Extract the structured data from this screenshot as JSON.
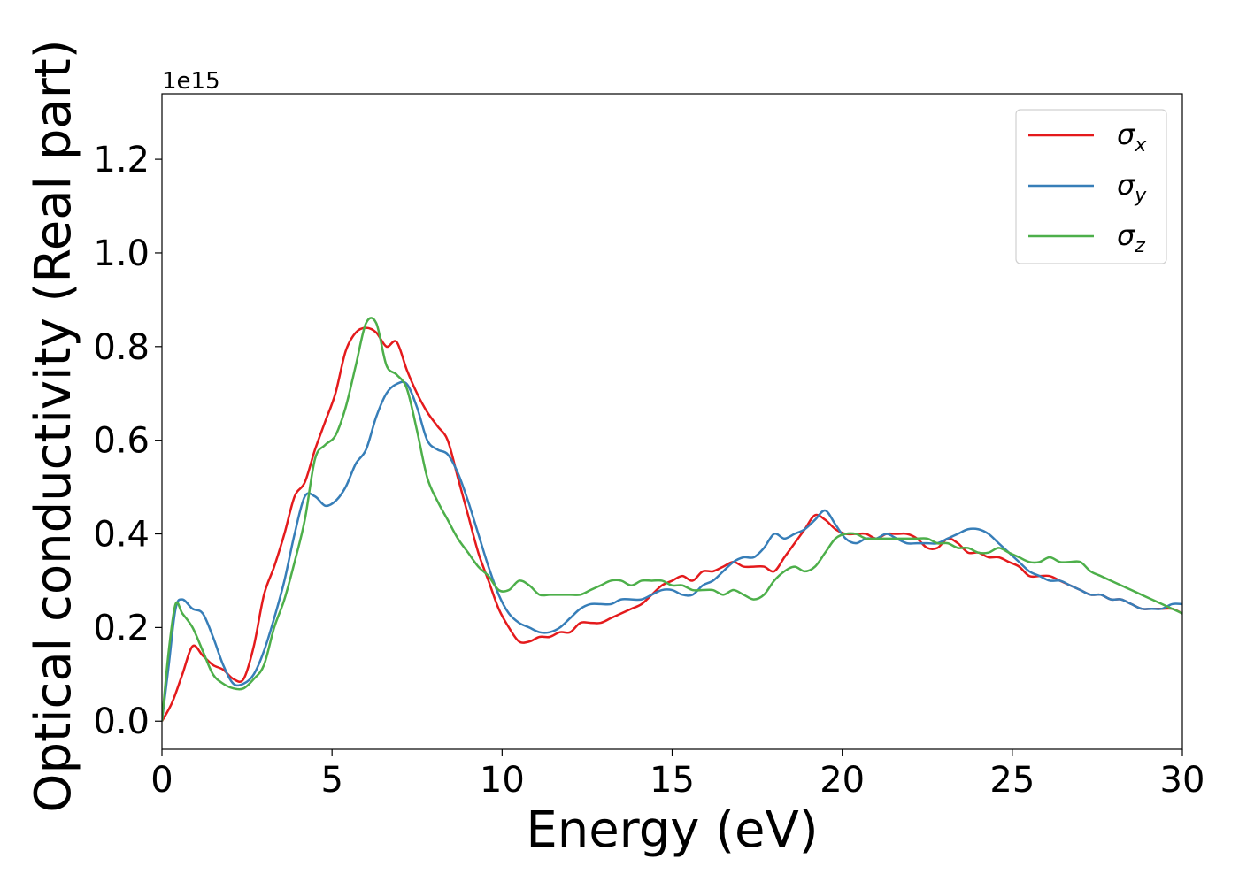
{
  "chart_data": {
    "type": "line",
    "xlabel": "Energy (eV)",
    "ylabel": "Optical conductivity (Real part)",
    "y_offset_label": "1e15",
    "xlim": [
      0,
      30
    ],
    "ylim": [
      -0.06,
      1.34
    ],
    "x_ticks": [
      0,
      5,
      10,
      15,
      20,
      25,
      30
    ],
    "y_ticks": [
      0.0,
      0.2,
      0.4,
      0.6,
      0.8,
      1.0,
      1.2
    ],
    "x_tick_labels": [
      "0",
      "5",
      "10",
      "15",
      "20",
      "25",
      "30"
    ],
    "y_tick_labels": [
      "0.0",
      "0.2",
      "0.4",
      "0.6",
      "0.8",
      "1.0",
      "1.2"
    ],
    "grid": false,
    "legend_position": "top-right",
    "series": [
      {
        "name": "σx",
        "symbol": "σ",
        "subscript": "x",
        "color": "#e41a1c",
        "points": [
          [
            0,
            0.0
          ],
          [
            0.3,
            0.04
          ],
          [
            0.6,
            0.1
          ],
          [
            0.9,
            0.16
          ],
          [
            1.2,
            0.14
          ],
          [
            1.5,
            0.12
          ],
          [
            1.8,
            0.11
          ],
          [
            2.1,
            0.09
          ],
          [
            2.4,
            0.09
          ],
          [
            2.7,
            0.16
          ],
          [
            3.0,
            0.27
          ],
          [
            3.3,
            0.33
          ],
          [
            3.6,
            0.4
          ],
          [
            3.9,
            0.48
          ],
          [
            4.2,
            0.51
          ],
          [
            4.5,
            0.58
          ],
          [
            4.8,
            0.64
          ],
          [
            5.1,
            0.7
          ],
          [
            5.4,
            0.79
          ],
          [
            5.7,
            0.83
          ],
          [
            6.0,
            0.84
          ],
          [
            6.3,
            0.83
          ],
          [
            6.6,
            0.8
          ],
          [
            6.9,
            0.81
          ],
          [
            7.2,
            0.75
          ],
          [
            7.5,
            0.7
          ],
          [
            7.8,
            0.66
          ],
          [
            8.1,
            0.63
          ],
          [
            8.4,
            0.6
          ],
          [
            8.7,
            0.52
          ],
          [
            9.0,
            0.44
          ],
          [
            9.3,
            0.36
          ],
          [
            9.6,
            0.3
          ],
          [
            9.9,
            0.24
          ],
          [
            10.2,
            0.2
          ],
          [
            10.5,
            0.17
          ],
          [
            10.8,
            0.17
          ],
          [
            11.1,
            0.18
          ],
          [
            11.4,
            0.18
          ],
          [
            11.7,
            0.19
          ],
          [
            12.0,
            0.19
          ],
          [
            12.3,
            0.21
          ],
          [
            12.6,
            0.21
          ],
          [
            12.9,
            0.21
          ],
          [
            13.2,
            0.22
          ],
          [
            13.5,
            0.23
          ],
          [
            13.8,
            0.24
          ],
          [
            14.1,
            0.25
          ],
          [
            14.4,
            0.27
          ],
          [
            14.7,
            0.29
          ],
          [
            15.0,
            0.3
          ],
          [
            15.3,
            0.31
          ],
          [
            15.6,
            0.3
          ],
          [
            15.9,
            0.32
          ],
          [
            16.2,
            0.32
          ],
          [
            16.5,
            0.33
          ],
          [
            16.8,
            0.34
          ],
          [
            17.1,
            0.33
          ],
          [
            17.4,
            0.33
          ],
          [
            17.7,
            0.33
          ],
          [
            18.0,
            0.32
          ],
          [
            18.3,
            0.35
          ],
          [
            18.6,
            0.38
          ],
          [
            18.9,
            0.41
          ],
          [
            19.2,
            0.44
          ],
          [
            19.5,
            0.43
          ],
          [
            19.8,
            0.41
          ],
          [
            20.1,
            0.4
          ],
          [
            20.4,
            0.4
          ],
          [
            20.7,
            0.4
          ],
          [
            21.0,
            0.39
          ],
          [
            21.3,
            0.4
          ],
          [
            21.6,
            0.4
          ],
          [
            21.9,
            0.4
          ],
          [
            22.2,
            0.39
          ],
          [
            22.5,
            0.37
          ],
          [
            22.8,
            0.37
          ],
          [
            23.1,
            0.39
          ],
          [
            23.4,
            0.38
          ],
          [
            23.7,
            0.36
          ],
          [
            24.0,
            0.36
          ],
          [
            24.3,
            0.35
          ],
          [
            24.6,
            0.35
          ],
          [
            24.9,
            0.34
          ],
          [
            25.2,
            0.33
          ],
          [
            25.5,
            0.31
          ],
          [
            25.8,
            0.31
          ],
          [
            26.1,
            0.31
          ],
          [
            26.4,
            0.3
          ],
          [
            26.7,
            0.29
          ],
          [
            27.0,
            0.28
          ],
          [
            27.3,
            0.27
          ],
          [
            27.6,
            0.27
          ],
          [
            27.9,
            0.26
          ],
          [
            28.2,
            0.26
          ],
          [
            28.5,
            0.25
          ],
          [
            28.8,
            0.24
          ],
          [
            29.1,
            0.24
          ],
          [
            29.4,
            0.24
          ],
          [
            29.7,
            0.24
          ],
          [
            30.0,
            0.23
          ]
        ]
      },
      {
        "name": "σy",
        "symbol": "σ",
        "subscript": "y",
        "color": "#377eb8",
        "points": [
          [
            0,
            0.0
          ],
          [
            0.2,
            0.12
          ],
          [
            0.4,
            0.24
          ],
          [
            0.6,
            0.26
          ],
          [
            0.9,
            0.24
          ],
          [
            1.2,
            0.23
          ],
          [
            1.5,
            0.18
          ],
          [
            1.8,
            0.12
          ],
          [
            2.1,
            0.08
          ],
          [
            2.4,
            0.08
          ],
          [
            2.7,
            0.1
          ],
          [
            3.0,
            0.15
          ],
          [
            3.3,
            0.22
          ],
          [
            3.6,
            0.3
          ],
          [
            3.9,
            0.4
          ],
          [
            4.2,
            0.48
          ],
          [
            4.5,
            0.48
          ],
          [
            4.8,
            0.46
          ],
          [
            5.1,
            0.47
          ],
          [
            5.4,
            0.5
          ],
          [
            5.7,
            0.55
          ],
          [
            6.0,
            0.58
          ],
          [
            6.3,
            0.65
          ],
          [
            6.6,
            0.7
          ],
          [
            6.9,
            0.72
          ],
          [
            7.2,
            0.72
          ],
          [
            7.5,
            0.67
          ],
          [
            7.8,
            0.6
          ],
          [
            8.1,
            0.58
          ],
          [
            8.4,
            0.57
          ],
          [
            8.7,
            0.53
          ],
          [
            9.0,
            0.47
          ],
          [
            9.3,
            0.4
          ],
          [
            9.6,
            0.33
          ],
          [
            9.9,
            0.27
          ],
          [
            10.2,
            0.23
          ],
          [
            10.5,
            0.21
          ],
          [
            10.8,
            0.2
          ],
          [
            11.1,
            0.19
          ],
          [
            11.4,
            0.19
          ],
          [
            11.7,
            0.2
          ],
          [
            12.0,
            0.22
          ],
          [
            12.3,
            0.24
          ],
          [
            12.6,
            0.25
          ],
          [
            12.9,
            0.25
          ],
          [
            13.2,
            0.25
          ],
          [
            13.5,
            0.26
          ],
          [
            13.8,
            0.26
          ],
          [
            14.1,
            0.26
          ],
          [
            14.4,
            0.27
          ],
          [
            14.7,
            0.28
          ],
          [
            15.0,
            0.28
          ],
          [
            15.3,
            0.27
          ],
          [
            15.6,
            0.27
          ],
          [
            15.9,
            0.29
          ],
          [
            16.2,
            0.3
          ],
          [
            16.5,
            0.32
          ],
          [
            16.8,
            0.34
          ],
          [
            17.1,
            0.35
          ],
          [
            17.4,
            0.35
          ],
          [
            17.7,
            0.37
          ],
          [
            18.0,
            0.4
          ],
          [
            18.3,
            0.39
          ],
          [
            18.6,
            0.4
          ],
          [
            18.9,
            0.41
          ],
          [
            19.2,
            0.43
          ],
          [
            19.5,
            0.45
          ],
          [
            19.8,
            0.42
          ],
          [
            20.1,
            0.39
          ],
          [
            20.4,
            0.38
          ],
          [
            20.7,
            0.39
          ],
          [
            21.0,
            0.39
          ],
          [
            21.3,
            0.4
          ],
          [
            21.6,
            0.39
          ],
          [
            21.9,
            0.38
          ],
          [
            22.2,
            0.38
          ],
          [
            22.5,
            0.38
          ],
          [
            22.8,
            0.38
          ],
          [
            23.1,
            0.39
          ],
          [
            23.4,
            0.4
          ],
          [
            23.7,
            0.41
          ],
          [
            24.0,
            0.41
          ],
          [
            24.3,
            0.4
          ],
          [
            24.6,
            0.38
          ],
          [
            24.9,
            0.36
          ],
          [
            25.2,
            0.34
          ],
          [
            25.5,
            0.32
          ],
          [
            25.8,
            0.31
          ],
          [
            26.1,
            0.3
          ],
          [
            26.4,
            0.3
          ],
          [
            26.7,
            0.29
          ],
          [
            27.0,
            0.28
          ],
          [
            27.3,
            0.27
          ],
          [
            27.6,
            0.27
          ],
          [
            27.9,
            0.26
          ],
          [
            28.2,
            0.26
          ],
          [
            28.5,
            0.25
          ],
          [
            28.8,
            0.24
          ],
          [
            29.1,
            0.24
          ],
          [
            29.4,
            0.24
          ],
          [
            29.7,
            0.25
          ],
          [
            30.0,
            0.25
          ]
        ]
      },
      {
        "name": "σz",
        "symbol": "σ",
        "subscript": "z",
        "color": "#4daf4a",
        "points": [
          [
            0,
            0.0
          ],
          [
            0.2,
            0.15
          ],
          [
            0.4,
            0.25
          ],
          [
            0.6,
            0.23
          ],
          [
            0.9,
            0.2
          ],
          [
            1.2,
            0.15
          ],
          [
            1.5,
            0.1
          ],
          [
            1.8,
            0.08
          ],
          [
            2.1,
            0.07
          ],
          [
            2.4,
            0.07
          ],
          [
            2.7,
            0.09
          ],
          [
            3.0,
            0.12
          ],
          [
            3.3,
            0.2
          ],
          [
            3.6,
            0.26
          ],
          [
            3.9,
            0.34
          ],
          [
            4.2,
            0.43
          ],
          [
            4.5,
            0.56
          ],
          [
            4.8,
            0.59
          ],
          [
            5.1,
            0.61
          ],
          [
            5.4,
            0.67
          ],
          [
            5.7,
            0.76
          ],
          [
            6.0,
            0.85
          ],
          [
            6.3,
            0.85
          ],
          [
            6.6,
            0.76
          ],
          [
            6.9,
            0.74
          ],
          [
            7.2,
            0.71
          ],
          [
            7.5,
            0.62
          ],
          [
            7.8,
            0.52
          ],
          [
            8.1,
            0.47
          ],
          [
            8.4,
            0.43
          ],
          [
            8.7,
            0.39
          ],
          [
            9.0,
            0.36
          ],
          [
            9.3,
            0.33
          ],
          [
            9.6,
            0.31
          ],
          [
            9.9,
            0.28
          ],
          [
            10.2,
            0.28
          ],
          [
            10.5,
            0.3
          ],
          [
            10.8,
            0.29
          ],
          [
            11.1,
            0.27
          ],
          [
            11.4,
            0.27
          ],
          [
            11.7,
            0.27
          ],
          [
            12.0,
            0.27
          ],
          [
            12.3,
            0.27
          ],
          [
            12.6,
            0.28
          ],
          [
            12.9,
            0.29
          ],
          [
            13.2,
            0.3
          ],
          [
            13.5,
            0.3
          ],
          [
            13.8,
            0.29
          ],
          [
            14.1,
            0.3
          ],
          [
            14.4,
            0.3
          ],
          [
            14.7,
            0.3
          ],
          [
            15.0,
            0.29
          ],
          [
            15.3,
            0.29
          ],
          [
            15.6,
            0.28
          ],
          [
            15.9,
            0.28
          ],
          [
            16.2,
            0.28
          ],
          [
            16.5,
            0.27
          ],
          [
            16.8,
            0.28
          ],
          [
            17.1,
            0.27
          ],
          [
            17.4,
            0.26
          ],
          [
            17.7,
            0.27
          ],
          [
            18.0,
            0.3
          ],
          [
            18.3,
            0.32
          ],
          [
            18.6,
            0.33
          ],
          [
            18.9,
            0.32
          ],
          [
            19.2,
            0.33
          ],
          [
            19.5,
            0.36
          ],
          [
            19.8,
            0.39
          ],
          [
            20.1,
            0.4
          ],
          [
            20.4,
            0.4
          ],
          [
            20.7,
            0.39
          ],
          [
            21.0,
            0.39
          ],
          [
            21.3,
            0.39
          ],
          [
            21.6,
            0.39
          ],
          [
            21.9,
            0.39
          ],
          [
            22.2,
            0.39
          ],
          [
            22.5,
            0.39
          ],
          [
            22.8,
            0.38
          ],
          [
            23.1,
            0.38
          ],
          [
            23.4,
            0.37
          ],
          [
            23.7,
            0.37
          ],
          [
            24.0,
            0.36
          ],
          [
            24.3,
            0.36
          ],
          [
            24.6,
            0.37
          ],
          [
            24.9,
            0.36
          ],
          [
            25.2,
            0.35
          ],
          [
            25.5,
            0.34
          ],
          [
            25.8,
            0.34
          ],
          [
            26.1,
            0.35
          ],
          [
            26.4,
            0.34
          ],
          [
            26.7,
            0.34
          ],
          [
            27.0,
            0.34
          ],
          [
            27.3,
            0.32
          ],
          [
            27.6,
            0.31
          ],
          [
            27.9,
            0.3
          ],
          [
            28.2,
            0.29
          ],
          [
            28.5,
            0.28
          ],
          [
            28.8,
            0.27
          ],
          [
            29.1,
            0.26
          ],
          [
            29.4,
            0.25
          ],
          [
            29.7,
            0.24
          ],
          [
            30.0,
            0.23
          ]
        ]
      }
    ]
  }
}
